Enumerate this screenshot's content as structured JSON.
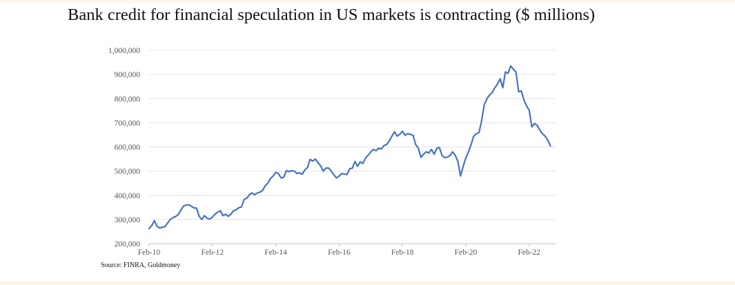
{
  "title": "Bank credit for financial speculation in US markets is contracting ($ millions)",
  "source": "Source: FINRA, Goldmoney",
  "chart_data": {
    "type": "line",
    "title": "Bank credit for financial speculation in US markets is contracting ($ millions)",
    "xlabel": "",
    "ylabel": "",
    "ylim": [
      200000,
      1000000
    ],
    "xlim": [
      "2010-02",
      "2022-12"
    ],
    "yticks": [
      "200,000",
      "300,000",
      "400,000",
      "500,000",
      "600,000",
      "700,000",
      "800,000",
      "900,000",
      "1,000,000"
    ],
    "xticks": [
      "Feb-10",
      "Feb-12",
      "Feb-14",
      "Feb-16",
      "Feb-18",
      "Feb-20",
      "Feb-22"
    ],
    "grid": true,
    "legend": "none",
    "series": [
      {
        "color": "#4472c4",
        "points": [
          [
            "2010-02",
            262000
          ],
          [
            "2010-03",
            275000
          ],
          [
            "2010-04",
            295000
          ],
          [
            "2010-05",
            272000
          ],
          [
            "2010-06",
            265000
          ],
          [
            "2010-07",
            268000
          ],
          [
            "2010-08",
            270000
          ],
          [
            "2010-09",
            285000
          ],
          [
            "2010-10",
            300000
          ],
          [
            "2010-11",
            308000
          ],
          [
            "2010-12",
            312000
          ],
          [
            "2011-01",
            320000
          ],
          [
            "2011-02",
            338000
          ],
          [
            "2011-03",
            355000
          ],
          [
            "2011-04",
            360000
          ],
          [
            "2011-05",
            361000
          ],
          [
            "2011-06",
            355000
          ],
          [
            "2011-07",
            348000
          ],
          [
            "2011-08",
            347000
          ],
          [
            "2011-09",
            313000
          ],
          [
            "2011-10",
            300000
          ],
          [
            "2011-11",
            316000
          ],
          [
            "2011-12",
            305000
          ],
          [
            "2012-01",
            302000
          ],
          [
            "2012-02",
            310000
          ],
          [
            "2012-03",
            322000
          ],
          [
            "2012-04",
            330000
          ],
          [
            "2012-05",
            336000
          ],
          [
            "2012-06",
            316000
          ],
          [
            "2012-07",
            322000
          ],
          [
            "2012-08",
            313000
          ],
          [
            "2012-09",
            322000
          ],
          [
            "2012-10",
            336000
          ],
          [
            "2012-11",
            340000
          ],
          [
            "2012-12",
            349000
          ],
          [
            "2013-01",
            352000
          ],
          [
            "2013-02",
            383000
          ],
          [
            "2013-03",
            388000
          ],
          [
            "2013-04",
            402000
          ],
          [
            "2013-05",
            410000
          ],
          [
            "2013-06",
            402000
          ],
          [
            "2013-07",
            410000
          ],
          [
            "2013-08",
            413000
          ],
          [
            "2013-09",
            420000
          ],
          [
            "2013-10",
            440000
          ],
          [
            "2013-11",
            450000
          ],
          [
            "2013-12",
            470000
          ],
          [
            "2014-01",
            480000
          ],
          [
            "2014-02",
            495000
          ],
          [
            "2014-03",
            490000
          ],
          [
            "2014-04",
            472000
          ],
          [
            "2014-05",
            475000
          ],
          [
            "2014-06",
            502000
          ],
          [
            "2014-07",
            498000
          ],
          [
            "2014-08",
            502000
          ],
          [
            "2014-09",
            500000
          ],
          [
            "2014-10",
            490000
          ],
          [
            "2014-11",
            493000
          ],
          [
            "2014-12",
            487000
          ],
          [
            "2015-01",
            505000
          ],
          [
            "2015-02",
            515000
          ],
          [
            "2015-03",
            549000
          ],
          [
            "2015-04",
            542000
          ],
          [
            "2015-05",
            550000
          ],
          [
            "2015-06",
            535000
          ],
          [
            "2015-07",
            522000
          ],
          [
            "2015-08",
            500000
          ],
          [
            "2015-09",
            513000
          ],
          [
            "2015-10",
            513000
          ],
          [
            "2015-11",
            500000
          ],
          [
            "2015-12",
            485000
          ],
          [
            "2016-01",
            472000
          ],
          [
            "2016-02",
            480000
          ],
          [
            "2016-03",
            490000
          ],
          [
            "2016-04",
            488000
          ],
          [
            "2016-05",
            486000
          ],
          [
            "2016-06",
            510000
          ],
          [
            "2016-07",
            512000
          ],
          [
            "2016-08",
            540000
          ],
          [
            "2016-09",
            520000
          ],
          [
            "2016-10",
            538000
          ],
          [
            "2016-11",
            532000
          ],
          [
            "2016-12",
            554000
          ],
          [
            "2017-01",
            566000
          ],
          [
            "2017-02",
            580000
          ],
          [
            "2017-03",
            590000
          ],
          [
            "2017-04",
            585000
          ],
          [
            "2017-05",
            595000
          ],
          [
            "2017-06",
            592000
          ],
          [
            "2017-07",
            606000
          ],
          [
            "2017-08",
            610000
          ],
          [
            "2017-09",
            625000
          ],
          [
            "2017-10",
            645000
          ],
          [
            "2017-11",
            663000
          ],
          [
            "2017-12",
            645000
          ],
          [
            "2018-01",
            652000
          ],
          [
            "2018-02",
            665000
          ],
          [
            "2018-03",
            648000
          ],
          [
            "2018-04",
            655000
          ],
          [
            "2018-05",
            652000
          ],
          [
            "2018-06",
            648000
          ],
          [
            "2018-07",
            610000
          ],
          [
            "2018-08",
            595000
          ],
          [
            "2018-09",
            557000
          ],
          [
            "2018-10",
            570000
          ],
          [
            "2018-11",
            580000
          ],
          [
            "2018-12",
            575000
          ],
          [
            "2019-01",
            590000
          ],
          [
            "2019-02",
            570000
          ],
          [
            "2019-03",
            595000
          ],
          [
            "2019-04",
            598000
          ],
          [
            "2019-05",
            565000
          ],
          [
            "2019-06",
            556000
          ],
          [
            "2019-07",
            558000
          ],
          [
            "2019-08",
            565000
          ],
          [
            "2019-09",
            580000
          ],
          [
            "2019-10",
            565000
          ],
          [
            "2019-11",
            540000
          ],
          [
            "2019-12",
            480000
          ],
          [
            "2020-01",
            520000
          ],
          [
            "2020-02",
            555000
          ],
          [
            "2020-03",
            580000
          ],
          [
            "2020-04",
            610000
          ],
          [
            "2020-05",
            645000
          ],
          [
            "2020-06",
            655000
          ],
          [
            "2020-07",
            660000
          ],
          [
            "2020-08",
            710000
          ],
          [
            "2020-09",
            775000
          ],
          [
            "2020-10",
            800000
          ],
          [
            "2020-11",
            815000
          ],
          [
            "2020-12",
            825000
          ],
          [
            "2021-01",
            845000
          ],
          [
            "2021-02",
            860000
          ],
          [
            "2021-03",
            882000
          ],
          [
            "2021-04",
            845000
          ],
          [
            "2021-05",
            910000
          ],
          [
            "2021-06",
            905000
          ],
          [
            "2021-07",
            935000
          ],
          [
            "2021-08",
            922000
          ],
          [
            "2021-09",
            910000
          ],
          [
            "2021-10",
            828000
          ],
          [
            "2021-11",
            832000
          ],
          [
            "2021-12",
            795000
          ],
          [
            "2022-01",
            770000
          ],
          [
            "2022-02",
            752000
          ],
          [
            "2022-03",
            683000
          ],
          [
            "2022-04",
            697000
          ],
          [
            "2022-05",
            690000
          ],
          [
            "2022-06",
            670000
          ],
          [
            "2022-07",
            655000
          ],
          [
            "2022-08",
            645000
          ],
          [
            "2022-09",
            630000
          ],
          [
            "2022-10",
            605000
          ]
        ]
      }
    ]
  }
}
